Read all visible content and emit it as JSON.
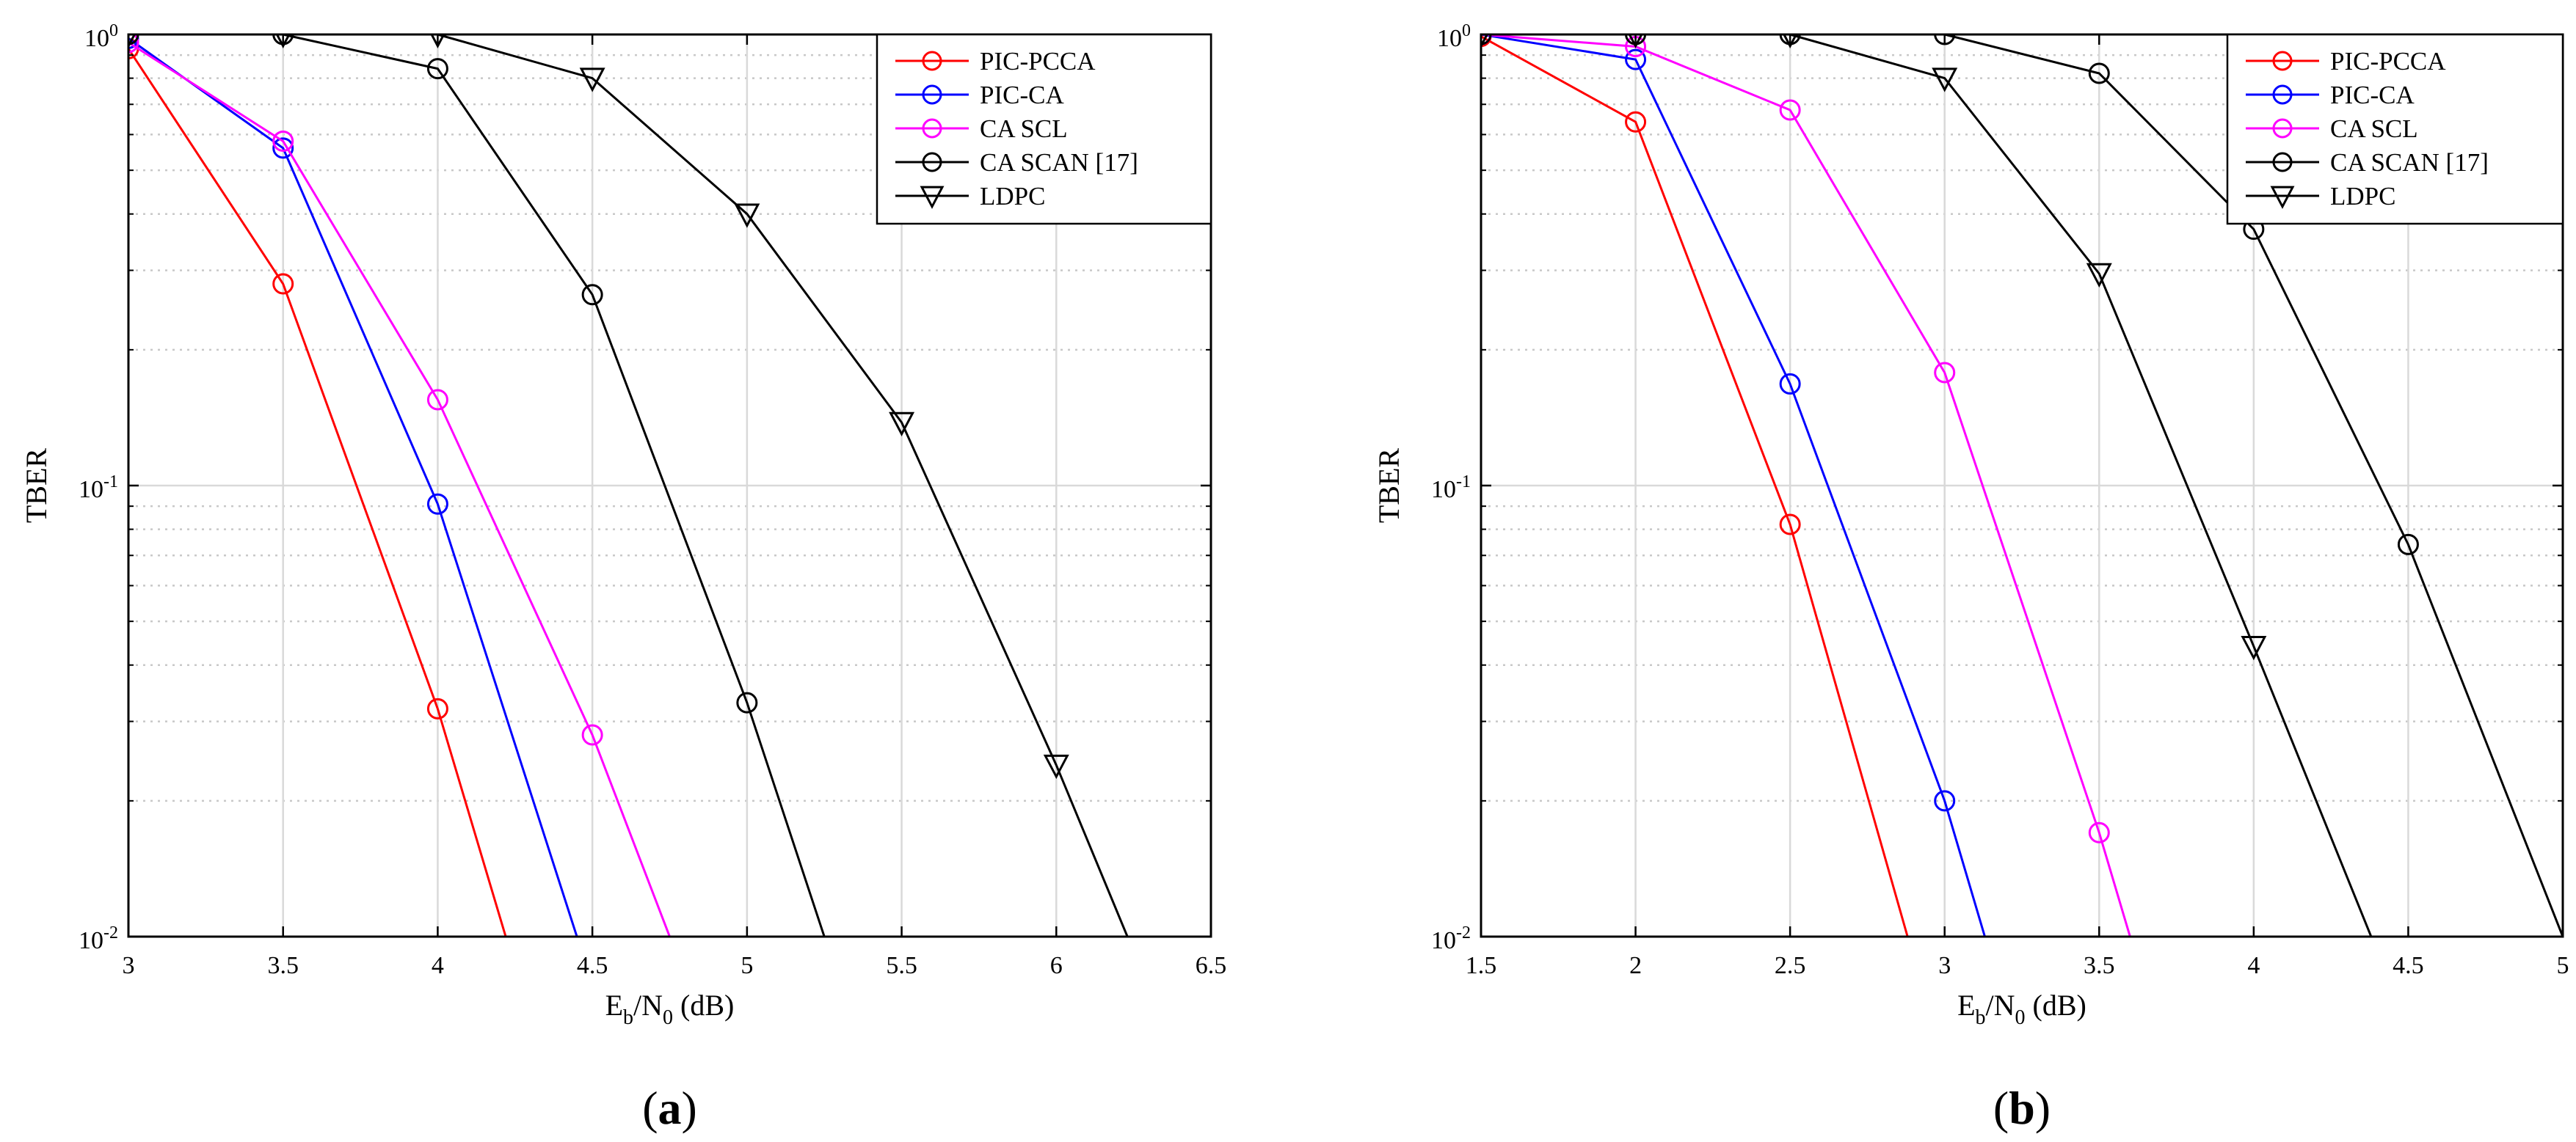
{
  "chart_data": [
    {
      "type": "line",
      "panel_label_open": "(",
      "panel_label_letter": "a",
      "panel_label_close": ")",
      "xlabel_main": "E",
      "xlabel_sub1": "b",
      "xlabel_mid": "/N",
      "xlabel_sub2": "0",
      "xlabel_unit": " (dB)",
      "ylabel": "TBER",
      "xscale": "linear",
      "yscale": "log",
      "xlim": [
        3,
        6.5
      ],
      "ylim": [
        0.01,
        1
      ],
      "xticks": [
        3,
        3.5,
        4,
        4.5,
        5,
        5.5,
        6,
        6.5
      ],
      "xtick_labels": [
        "3",
        "3.5",
        "4",
        "4.5",
        "5",
        "5.5",
        "6",
        "6.5"
      ],
      "yticks": [
        {
          "value": 1,
          "base": "10",
          "exp": "0"
        },
        {
          "value": 0.1,
          "base": "10",
          "exp": "-1"
        },
        {
          "value": 0.01,
          "base": "10",
          "exp": "-2"
        }
      ],
      "grid": true,
      "legend_position": "top-right",
      "series": [
        {
          "name": "PIC-PCCA",
          "color": "#ff0000",
          "marker": "circle",
          "x": [
            3,
            3.5,
            4,
            4.22
          ],
          "y": [
            0.93,
            0.28,
            0.032,
            0.01
          ],
          "marked": [
            true,
            true,
            true,
            false
          ]
        },
        {
          "name": "PIC-CA",
          "color": "#0000ff",
          "marker": "circle",
          "x": [
            3,
            3.5,
            4,
            4.45
          ],
          "y": [
            0.98,
            0.56,
            0.091,
            0.01
          ],
          "marked": [
            true,
            true,
            true,
            false
          ]
        },
        {
          "name": "CA SCL",
          "color": "#ff00ff",
          "marker": "circle",
          "x": [
            3,
            3.5,
            4,
            4.5,
            4.75
          ],
          "y": [
            0.96,
            0.58,
            0.155,
            0.028,
            0.01
          ],
          "marked": [
            true,
            true,
            true,
            true,
            false
          ]
        },
        {
          "name": "CA SCAN [17]",
          "color": "#000000",
          "marker": "circle",
          "x": [
            3,
            3.5,
            4,
            4.5,
            5,
            5.25
          ],
          "y": [
            1.0,
            1.0,
            0.84,
            0.265,
            0.033,
            0.01
          ],
          "marked": [
            true,
            true,
            true,
            true,
            true,
            false
          ]
        },
        {
          "name": "LDPC",
          "color": "#000000",
          "marker": "triangle-down",
          "x": [
            3,
            3.5,
            4,
            4.5,
            5,
            5.5,
            6,
            6.23
          ],
          "y": [
            1.0,
            1.0,
            1.0,
            0.8,
            0.4,
            0.138,
            0.024,
            0.01
          ],
          "marked": [
            true,
            true,
            true,
            true,
            true,
            true,
            true,
            false
          ]
        }
      ]
    },
    {
      "type": "line",
      "panel_label_open": "(",
      "panel_label_letter": "b",
      "panel_label_close": ")",
      "xlabel_main": "E",
      "xlabel_sub1": "b",
      "xlabel_mid": "/N",
      "xlabel_sub2": "0",
      "xlabel_unit": " (dB)",
      "ylabel": "TBER",
      "xscale": "linear",
      "yscale": "log",
      "xlim": [
        1.5,
        5
      ],
      "ylim": [
        0.01,
        1
      ],
      "xticks": [
        1.5,
        2,
        2.5,
        3,
        3.5,
        4,
        4.5,
        5
      ],
      "xtick_labels": [
        "1.5",
        "2",
        "2.5",
        "3",
        "3.5",
        "4",
        "4.5",
        "5"
      ],
      "yticks": [
        {
          "value": 1,
          "base": "10",
          "exp": "0"
        },
        {
          "value": 0.1,
          "base": "10",
          "exp": "-1"
        },
        {
          "value": 0.01,
          "base": "10",
          "exp": "-2"
        }
      ],
      "grid": true,
      "legend_position": "top-right",
      "series": [
        {
          "name": "PIC-PCCA",
          "color": "#ff0000",
          "marker": "circle",
          "x": [
            1.5,
            2,
            2.5,
            2.88
          ],
          "y": [
            0.99,
            0.64,
            0.082,
            0.01
          ],
          "marked": [
            true,
            true,
            true,
            false
          ]
        },
        {
          "name": "PIC-CA",
          "color": "#0000ff",
          "marker": "circle",
          "x": [
            1.5,
            2,
            2.5,
            3,
            3.13
          ],
          "y": [
            1.0,
            0.88,
            0.168,
            0.02,
            0.01
          ],
          "marked": [
            true,
            true,
            true,
            true,
            false
          ]
        },
        {
          "name": "CA SCL",
          "color": "#ff00ff",
          "marker": "circle",
          "x": [
            1.5,
            2,
            2.5,
            3,
            3.5,
            3.6
          ],
          "y": [
            1.0,
            0.94,
            0.68,
            0.178,
            0.017,
            0.01
          ],
          "marked": [
            true,
            true,
            true,
            true,
            true,
            false
          ]
        },
        {
          "name": "CA SCAN [17]",
          "color": "#000000",
          "marker": "circle",
          "x": [
            1.5,
            2,
            2.5,
            3,
            3.5,
            4,
            4.5,
            5
          ],
          "y": [
            1.0,
            1.0,
            1.0,
            1.0,
            0.82,
            0.37,
            0.074,
            0.01
          ],
          "marked": [
            true,
            true,
            true,
            true,
            true,
            true,
            true,
            false
          ]
        },
        {
          "name": "LDPC",
          "color": "#000000",
          "marker": "triangle-down",
          "x": [
            1.5,
            2,
            2.5,
            3,
            3.5,
            4,
            4.38
          ],
          "y": [
            1.0,
            1.0,
            1.0,
            0.8,
            0.295,
            0.044,
            0.01
          ],
          "marked": [
            true,
            true,
            true,
            true,
            true,
            true,
            false
          ]
        }
      ]
    }
  ]
}
